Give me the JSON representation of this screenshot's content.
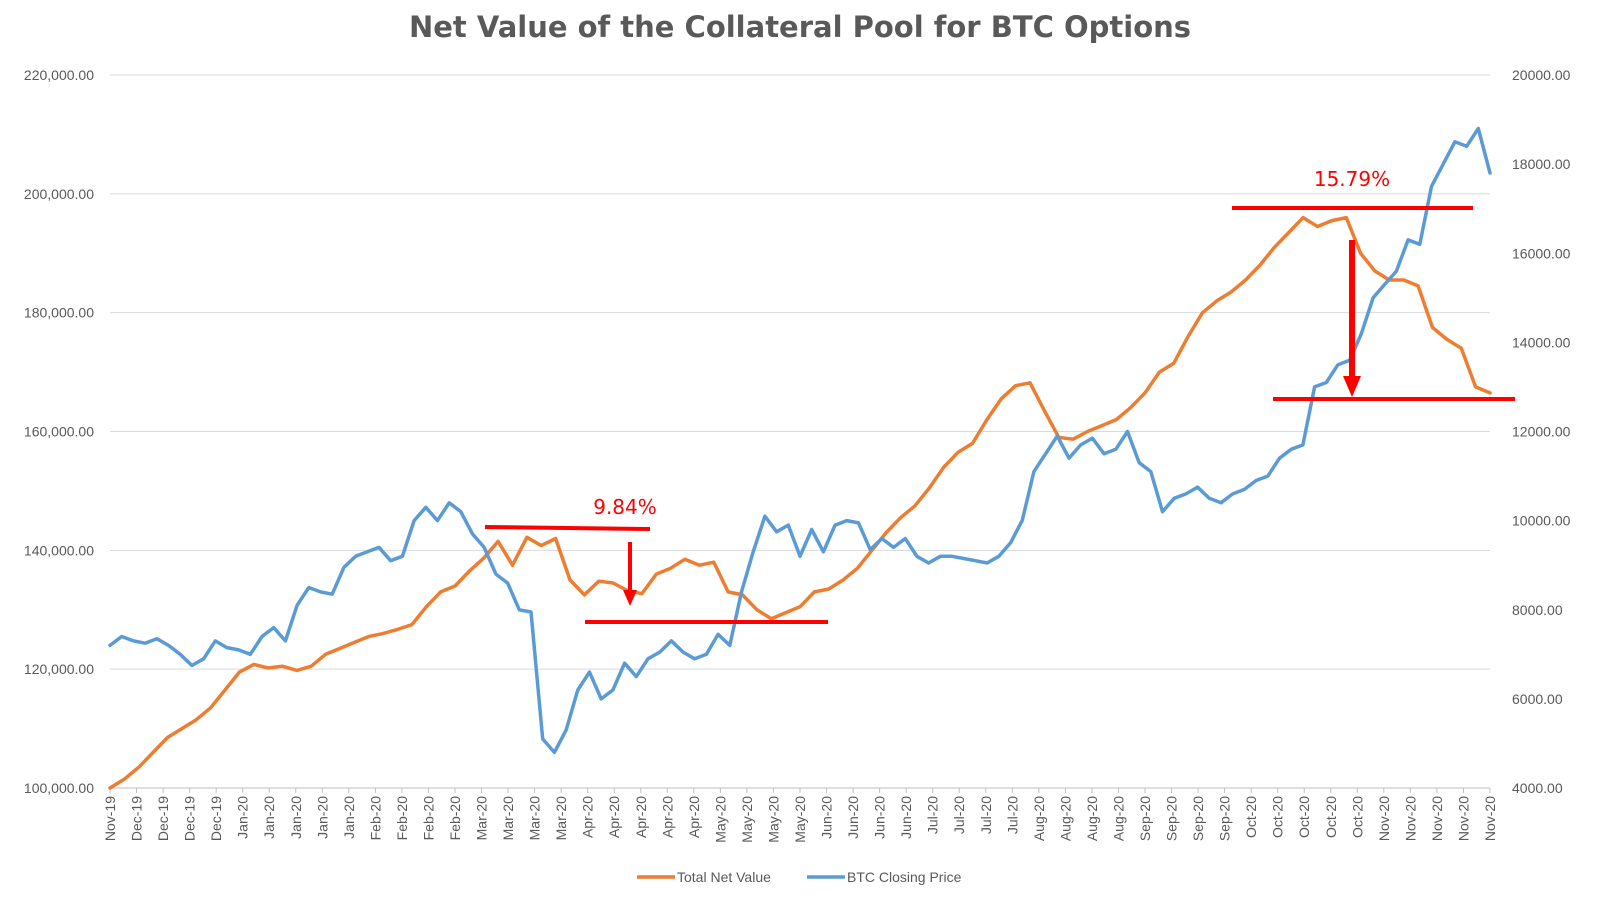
{
  "chart_data": {
    "type": "line",
    "title": "Net Value of the Collateral Pool for BTC Options",
    "y_left": {
      "min": 100000,
      "max": 220000,
      "ticks": [
        "100,000.00",
        "120,000.00",
        "140,000.00",
        "160,000.00",
        "180,000.00",
        "200,000.00",
        "220,000.00"
      ]
    },
    "y_right": {
      "min": 4000,
      "max": 20000,
      "ticks": [
        "4000.00",
        "6000.00",
        "8000.00",
        "10000.00",
        "12000.00",
        "14000.00",
        "16000.00",
        "18000.00",
        "20000.00"
      ]
    },
    "x_labels": [
      "Nov-19",
      "Dec-19",
      "Dec-19",
      "Dec-19",
      "Dec-19",
      "Jan-20",
      "Jan-20",
      "Jan-20",
      "Jan-20",
      "Jan-20",
      "Feb-20",
      "Feb-20",
      "Feb-20",
      "Feb-20",
      "Mar-20",
      "Mar-20",
      "Mar-20",
      "Mar-20",
      "Apr-20",
      "Apr-20",
      "Apr-20",
      "Apr-20",
      "Apr-20",
      "May-20",
      "May-20",
      "May-20",
      "May-20",
      "Jun-20",
      "Jun-20",
      "Jun-20",
      "Jun-20",
      "Jul-20",
      "Jul-20",
      "Jul-20",
      "Jul-20",
      "Aug-20",
      "Aug-20",
      "Aug-20",
      "Aug-20",
      "Sep-20",
      "Sep-20",
      "Sep-20",
      "Sep-20",
      "Oct-20",
      "Oct-20",
      "Oct-20",
      "Oct-20",
      "Oct-20",
      "Nov-20",
      "Nov-20",
      "Nov-20",
      "Nov-20",
      "Nov-20"
    ],
    "grid": true,
    "legend_position": "bottom",
    "series": [
      {
        "name": "Total Net Value",
        "axis": "left",
        "color": "#ed7d31",
        "values": [
          100000,
          101500,
          103500,
          106000,
          108500,
          110000,
          111500,
          113500,
          116500,
          119500,
          120800,
          120200,
          120500,
          119800,
          120500,
          122500,
          123500,
          124500,
          125500,
          126000,
          126700,
          127500,
          130500,
          133000,
          134000,
          136500,
          138700,
          141500,
          137500,
          142200,
          140800,
          142000,
          135000,
          132500,
          134800,
          134500,
          133200,
          132700,
          136000,
          137000,
          138500,
          137500,
          138000,
          133000,
          132500,
          130000,
          128500,
          129500,
          130500,
          133000,
          133500,
          135000,
          137000,
          140000,
          143000,
          145500,
          147500,
          150500,
          154000,
          156500,
          158000,
          162000,
          165500,
          167700,
          168200,
          163500,
          159000,
          158700,
          160000,
          161000,
          162000,
          164000,
          166500,
          170000,
          171500,
          176000,
          180000,
          182000,
          183500,
          185500,
          188000,
          191000,
          193500,
          196000,
          194500,
          195500,
          196000,
          190000,
          187000,
          185500,
          185500,
          184500,
          177500,
          175500,
          174000,
          167500,
          166500
        ]
      },
      {
        "name": "BTC Closing Price",
        "axis": "right",
        "color": "#5b9bd5",
        "values": [
          7200,
          7400,
          7300,
          7250,
          7350,
          7200,
          7000,
          6750,
          6900,
          7300,
          7150,
          7100,
          7000,
          7400,
          7600,
          7300,
          8100,
          8500,
          8400,
          8350,
          8950,
          9200,
          9300,
          9400,
          9100,
          9200,
          10000,
          10300,
          10000,
          10400,
          10200,
          9700,
          9400,
          8800,
          8600,
          8000,
          7950,
          5100,
          4800,
          5300,
          6200,
          6600,
          6000,
          6200,
          6800,
          6500,
          6900,
          7050,
          7300,
          7050,
          6900,
          7000,
          7450,
          7200,
          8400,
          9300,
          10100,
          9750,
          9900,
          9200,
          9800,
          9300,
          9900,
          10000,
          9950,
          9350,
          9600,
          9400,
          9600,
          9200,
          9050,
          9200,
          9200,
          9150,
          9100,
          9050,
          9200,
          9500,
          10000,
          11100,
          11500,
          11900,
          11400,
          11700,
          11850,
          11500,
          11600,
          12000,
          11300,
          11100,
          10200,
          10500,
          10600,
          10750,
          10500,
          10400,
          10600,
          10700,
          10900,
          11000,
          11400,
          11600,
          11700,
          13000,
          13100,
          13500,
          13600,
          14200,
          15000,
          15300,
          15600,
          16300,
          16200,
          17500,
          18000,
          18500,
          18400,
          18800,
          17800
        ]
      }
    ],
    "annotations": [
      {
        "label": "9.84%"
      },
      {
        "label": "15.79%"
      }
    ]
  }
}
